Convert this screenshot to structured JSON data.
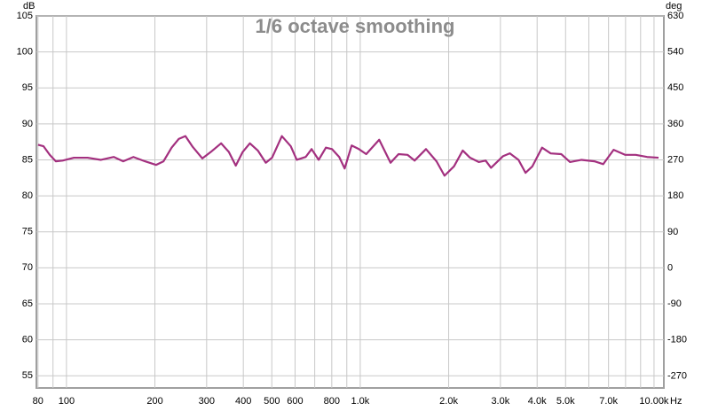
{
  "chart_data": {
    "type": "line",
    "title": "1/6 octave smoothing",
    "y_label": "dB",
    "y2_label": "deg",
    "x_label": "Hz",
    "log_x": true,
    "grid": true,
    "xlim": [
      79,
      10800
    ],
    "xticks": [
      80,
      100,
      200,
      300,
      400,
      500,
      600,
      800,
      {
        "value": 1000,
        "label": "1.0k"
      },
      {
        "value": 2000,
        "label": "2.0k"
      },
      {
        "value": 3000,
        "label": "3.0k"
      },
      {
        "value": 4000,
        "label": "4.0k"
      },
      {
        "value": 5000,
        "label": "5.0k"
      },
      {
        "value": 7000,
        "label": "7.0k"
      },
      {
        "value": 10000,
        "label": "10.00k"
      }
    ],
    "x_minor_grid": [
      90,
      700,
      900,
      6000,
      8000,
      9000
    ],
    "ylim": [
      53.3,
      105
    ],
    "yticks": [
      55,
      60,
      65,
      70,
      75,
      80,
      85,
      90,
      95,
      100,
      105
    ],
    "y2lim": [
      -300,
      630
    ],
    "y2ticks": [
      -270,
      -180,
      -90,
      0,
      90,
      180,
      270,
      360,
      450,
      540,
      630
    ],
    "x": [
      80,
      83.5,
      87.7,
      92,
      97,
      106,
      118,
      131,
      145,
      156,
      169,
      185,
      202,
      214,
      228,
      241,
      254,
      269,
      290,
      310,
      336,
      357,
      377,
      398,
      421,
      448,
      477,
      501,
      541,
      580,
      608,
      652,
      683,
      722,
      764,
      801,
      848,
      885,
      935,
      989,
      1048,
      1160,
      1268,
      1350,
      1448,
      1531,
      1674,
      1818,
      1936,
      2085,
      2233,
      2364,
      2531,
      2672,
      2787,
      3059,
      3230,
      3457,
      3653,
      3854,
      4158,
      4449,
      4831,
      5177,
      5666,
      6268,
      6713,
      7285,
      7968,
      8662,
      9474,
      10360
    ],
    "series": [
      {
        "color": "#a3307f",
        "values": [
          87.1,
          86.9,
          85.7,
          84.8,
          84.9,
          85.3,
          85.3,
          85.0,
          85.4,
          84.8,
          85.4,
          84.8,
          84.3,
          84.8,
          86.7,
          87.9,
          88.3,
          86.8,
          85.2,
          86.1,
          87.3,
          86.1,
          84.2,
          86.1,
          87.3,
          86.3,
          84.6,
          85.3,
          88.3,
          86.9,
          85.0,
          85.4,
          86.5,
          85.0,
          86.7,
          86.5,
          85.4,
          83.8,
          87.0,
          86.5,
          85.8,
          87.8,
          84.6,
          85.8,
          85.7,
          84.9,
          86.5,
          84.8,
          82.8,
          84.1,
          86.3,
          85.3,
          84.7,
          84.9,
          83.9,
          85.5,
          85.9,
          85.0,
          83.2,
          84.1,
          86.7,
          85.9,
          85.8,
          84.7,
          85.0,
          84.8,
          84.4,
          86.4,
          85.7,
          85.7,
          85.4,
          85.3
        ]
      }
    ]
  }
}
